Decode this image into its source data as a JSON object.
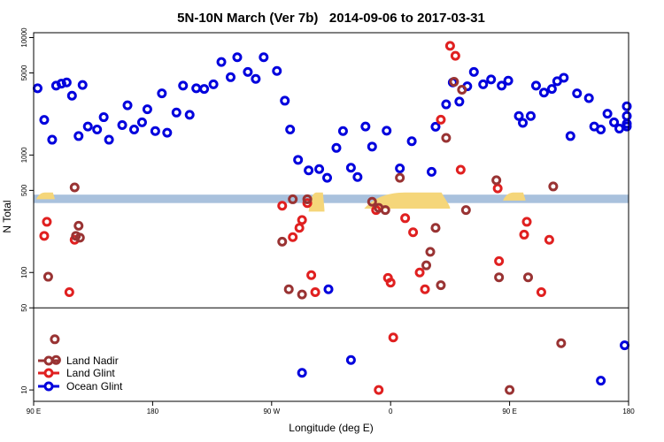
{
  "chart_data": {
    "type": "scatter",
    "title": "5N-10N March (Ver 7b)   2014-09-06 to 2017-03-31",
    "xlabel": "Longitude (deg E)",
    "ylabel": "N Total",
    "y_scale": "log",
    "x_range": [
      90,
      540
    ],
    "y_range": [
      8,
      11000
    ],
    "x_ticks": [
      {
        "value": 90,
        "label": "90 E"
      },
      {
        "value": 180,
        "label": "180"
      },
      {
        "value": 270,
        "label": "90 W"
      },
      {
        "value": 360,
        "label": "0"
      },
      {
        "value": 450,
        "label": "90 E"
      },
      {
        "value": 540,
        "label": "180"
      }
    ],
    "y_ticks": [
      {
        "value": 10,
        "label": "10"
      },
      {
        "value": 50,
        "label": "50"
      },
      {
        "value": 100,
        "label": "100"
      },
      {
        "value": 500,
        "label": "500"
      },
      {
        "value": 1000,
        "label": "1000"
      },
      {
        "value": 5000,
        "label": "5000"
      },
      {
        "value": 10000,
        "label": "10000"
      }
    ],
    "divider_y": 50,
    "band": {
      "y_min": 390,
      "y_max": 460,
      "color": "#a9c1dd"
    },
    "land_fills": [
      {
        "x_min": 298,
        "x_max": 310,
        "y_min": 330,
        "y_max": 480
      },
      {
        "x_min": 340,
        "x_max": 405,
        "y_min": 350,
        "y_max": 480
      },
      {
        "x_min": 92,
        "x_max": 106,
        "y_min": 420,
        "y_max": 480
      },
      {
        "x_min": 445,
        "x_max": 462,
        "y_min": 410,
        "y_max": 480
      }
    ],
    "land_color": "#f5d67a",
    "legend_position": "bottom-left",
    "series": [
      {
        "name": "Land Nadir",
        "color": "#993333",
        "points": [
          [
            101,
            92
          ],
          [
            121,
            530
          ],
          [
            106,
            27
          ],
          [
            107,
            18
          ],
          [
            124,
            250
          ],
          [
            122,
            205
          ],
          [
            125,
            198
          ],
          [
            278,
            183
          ],
          [
            283,
            72
          ],
          [
            286,
            420
          ],
          [
            293,
            65
          ],
          [
            297,
            420
          ],
          [
            346,
            400
          ],
          [
            351,
            355
          ],
          [
            356,
            340
          ],
          [
            367,
            640
          ],
          [
            387,
            115
          ],
          [
            390,
            150
          ],
          [
            394,
            240
          ],
          [
            398,
            78
          ],
          [
            402,
            1400
          ],
          [
            408,
            4200
          ],
          [
            414,
            3600
          ],
          [
            417,
            340
          ],
          [
            440,
            610
          ],
          [
            442,
            91
          ],
          [
            464,
            91
          ],
          [
            483,
            540
          ],
          [
            489,
            25
          ],
          [
            450,
            10
          ]
        ]
      },
      {
        "name": "Land Glint",
        "color": "#e02020",
        "points": [
          [
            98,
            205
          ],
          [
            100,
            270
          ],
          [
            117,
            68
          ],
          [
            121,
            190
          ],
          [
            278,
            370
          ],
          [
            286,
            200
          ],
          [
            291,
            240
          ],
          [
            293,
            280
          ],
          [
            297,
            390
          ],
          [
            300,
            95
          ],
          [
            303,
            68
          ],
          [
            349,
            340
          ],
          [
            351,
            10
          ],
          [
            358,
            90
          ],
          [
            360,
            82
          ],
          [
            362,
            28
          ],
          [
            371,
            290
          ],
          [
            377,
            220
          ],
          [
            382,
            100
          ],
          [
            386,
            72
          ],
          [
            398,
            2000
          ],
          [
            405,
            8500
          ],
          [
            409,
            7000
          ],
          [
            413,
            750
          ],
          [
            441,
            520
          ],
          [
            442,
            125
          ],
          [
            461,
            210
          ],
          [
            463,
            270
          ],
          [
            474,
            68
          ],
          [
            480,
            190
          ]
        ]
      },
      {
        "name": "Ocean Glint",
        "color": "#0000dd",
        "points": [
          [
            93,
            3700
          ],
          [
            98,
            1990
          ],
          [
            104,
            1350
          ],
          [
            107,
            3900
          ],
          [
            111,
            4050
          ],
          [
            115,
            4150
          ],
          [
            119,
            3200
          ],
          [
            124,
            1450
          ],
          [
            127,
            3950
          ],
          [
            131,
            1750
          ],
          [
            138,
            1650
          ],
          [
            143,
            2100
          ],
          [
            147,
            1350
          ],
          [
            157,
            1800
          ],
          [
            161,
            2650
          ],
          [
            166,
            1650
          ],
          [
            172,
            1900
          ],
          [
            176,
            2450
          ],
          [
            182,
            1600
          ],
          [
            187,
            3350
          ],
          [
            191,
            1550
          ],
          [
            198,
            2300
          ],
          [
            203,
            3900
          ],
          [
            208,
            2200
          ],
          [
            213,
            3700
          ],
          [
            219,
            3650
          ],
          [
            226,
            4000
          ],
          [
            232,
            6200
          ],
          [
            239,
            4600
          ],
          [
            244,
            6800
          ],
          [
            252,
            5100
          ],
          [
            258,
            4450
          ],
          [
            264,
            6800
          ],
          [
            274,
            5200
          ],
          [
            280,
            2900
          ],
          [
            284,
            1650
          ],
          [
            290,
            910
          ],
          [
            298,
            740
          ],
          [
            306,
            760
          ],
          [
            312,
            640
          ],
          [
            319,
            1150
          ],
          [
            324,
            1600
          ],
          [
            330,
            780
          ],
          [
            335,
            650
          ],
          [
            341,
            1750
          ],
          [
            346,
            1180
          ],
          [
            357,
            1610
          ],
          [
            367,
            770
          ],
          [
            376,
            1310
          ],
          [
            391,
            720
          ],
          [
            394,
            1740
          ],
          [
            402,
            2700
          ],
          [
            407,
            4150
          ],
          [
            412,
            2850
          ],
          [
            418,
            3850
          ],
          [
            423,
            5100
          ],
          [
            430,
            4000
          ],
          [
            436,
            4400
          ],
          [
            444,
            3900
          ],
          [
            449,
            4300
          ],
          [
            457,
            2150
          ],
          [
            460,
            1880
          ],
          [
            466,
            2150
          ],
          [
            470,
            3900
          ],
          [
            476,
            3400
          ],
          [
            482,
            3650
          ],
          [
            486,
            4250
          ],
          [
            491,
            4550
          ],
          [
            496,
            1450
          ],
          [
            501,
            3350
          ],
          [
            510,
            3050
          ],
          [
            514,
            1750
          ],
          [
            519,
            1650
          ],
          [
            524,
            2250
          ],
          [
            529,
            1900
          ],
          [
            533,
            1680
          ],
          [
            543,
            1850
          ],
          [
            551,
            2600
          ],
          [
            557,
            1750
          ],
          [
            562,
            2150
          ],
          [
            537,
            24
          ],
          [
            293,
            14
          ],
          [
            313,
            72
          ],
          [
            330,
            18
          ],
          [
            519,
            12
          ]
        ]
      }
    ]
  }
}
